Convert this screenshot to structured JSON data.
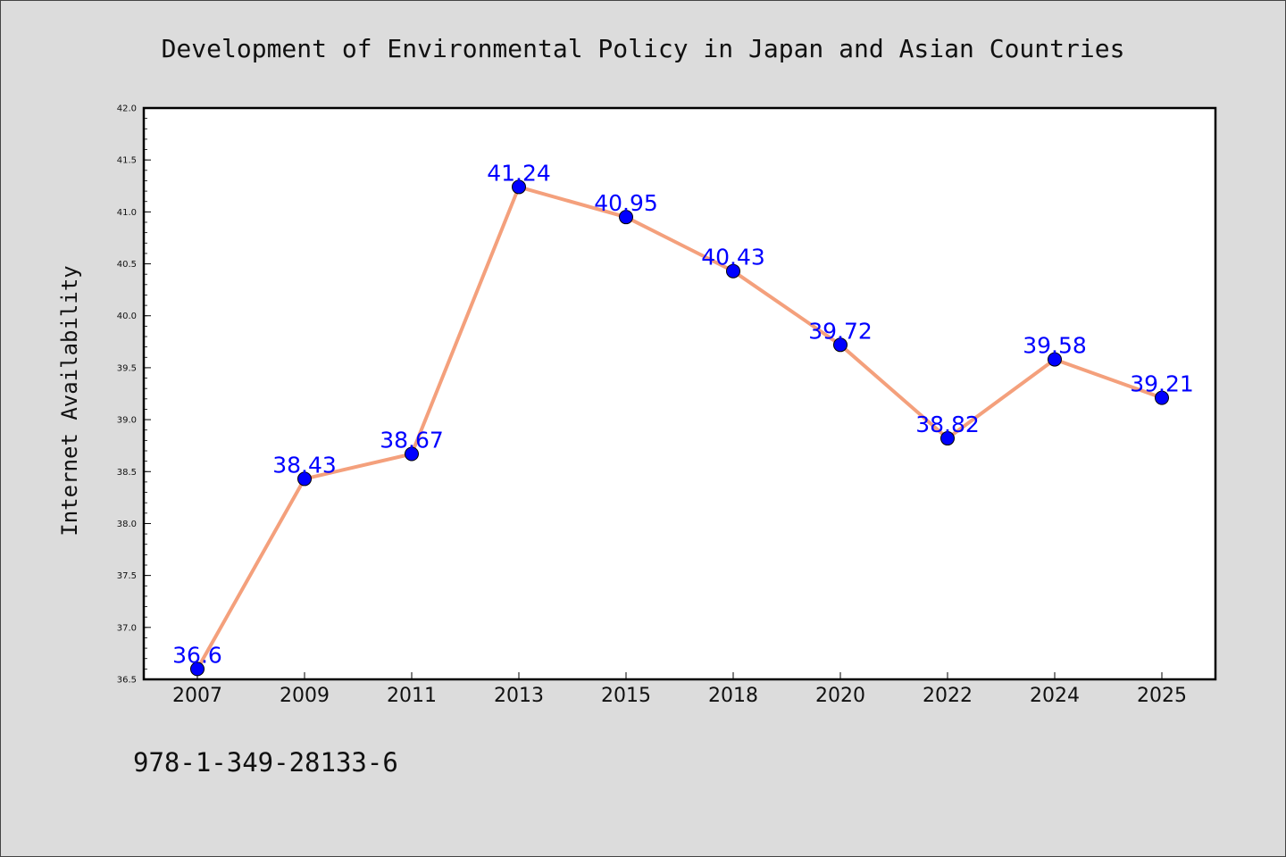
{
  "chart_data": {
    "type": "line",
    "title": "Development of Environmental Policy in Japan and Asian Countries",
    "xlabel": "",
    "ylabel": "Internet Availability",
    "categories": [
      "2007",
      "2009",
      "2011",
      "2013",
      "2015",
      "2018",
      "2020",
      "2022",
      "2024",
      "2025"
    ],
    "values": [
      36.6,
      38.43,
      38.67,
      41.24,
      40.95,
      40.43,
      39.72,
      38.82,
      39.58,
      39.21
    ],
    "data_labels": [
      "36.6",
      "38.43",
      "38.67",
      "41.24",
      "40.95",
      "40.43",
      "39.72",
      "38.82",
      "39.58",
      "39.21"
    ],
    "ylim": [
      36.5,
      42.0
    ],
    "yticks": [
      "36.5",
      "37.0",
      "37.5",
      "38.0",
      "38.5",
      "39.0",
      "39.5",
      "40.0",
      "40.5",
      "41.0",
      "41.5",
      "42.0"
    ],
    "grid": false,
    "legend": "none",
    "line_color": "#f4a07c",
    "marker_color": "#0000ff",
    "label_color": "#0000ff"
  },
  "footer": {
    "identifier": "978-1-349-28133-6"
  }
}
